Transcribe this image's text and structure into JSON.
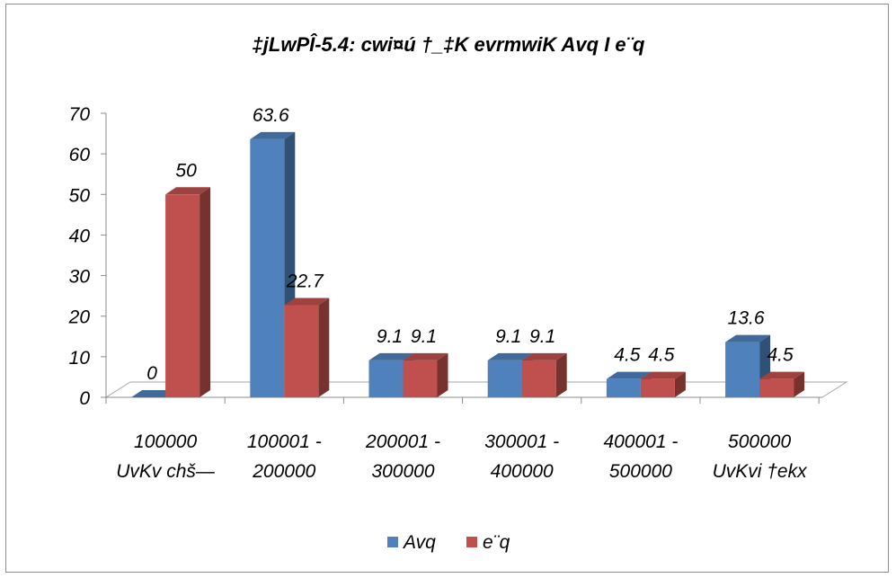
{
  "chart_data": {
    "type": "bar",
    "title": "‡jLwPÎ-5.4: cwi¤ú †_‡K evrmwiK Avq I e¨q",
    "xlabel": "",
    "ylabel": "",
    "categories": [
      [
        "100000",
        "UvKv chš—"
      ],
      [
        "100001 -",
        "200000"
      ],
      [
        "200001 -",
        "300000"
      ],
      [
        "300001 -",
        "400000"
      ],
      [
        "400001 -",
        "500000"
      ],
      [
        "500000",
        "UvKvi †ekx"
      ]
    ],
    "series": [
      {
        "name": "Avq",
        "values": [
          0,
          63.6,
          9.1,
          9.1,
          4.5,
          13.6
        ],
        "color": "#4f81bd"
      },
      {
        "name": "e¨q",
        "values": [
          50,
          22.7,
          9.1,
          9.1,
          4.5,
          4.5
        ],
        "color": "#c0504d"
      }
    ],
    "ylim": [
      0,
      70
    ],
    "yticks": [
      0,
      10,
      20,
      30,
      40,
      50,
      60,
      70
    ],
    "grid": false,
    "legend_position": "bottom",
    "three_d": true
  }
}
